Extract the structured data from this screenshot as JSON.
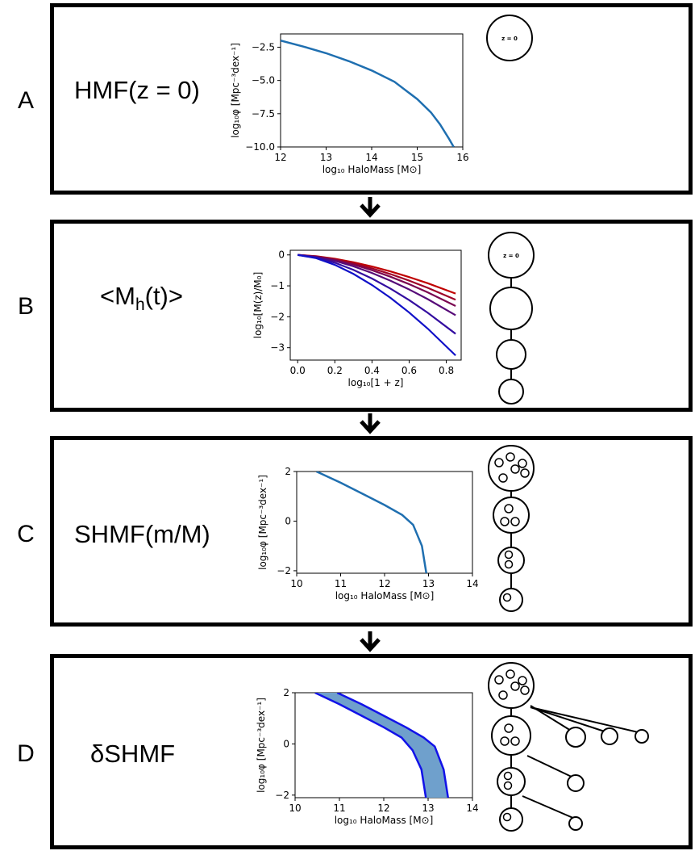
{
  "panels": [
    {
      "letter": "A",
      "title_main": "HMF(z = 0)"
    },
    {
      "letter": "B",
      "title_main": "<M",
      "title_sub": "h",
      "title_tail": "(t)>"
    },
    {
      "letter": "C",
      "title_main": "SHMF(m/M)"
    },
    {
      "letter": "D",
      "title_main": "δSHMF"
    }
  ],
  "stage_label": "z = 0",
  "colors": {
    "series_blue": "#1f6fb0",
    "band_fill": "#6fa0cc",
    "band_edge": "#1212e8",
    "evo_start": "#c00000",
    "evo_end": "#1010c8"
  },
  "chart_data": [
    {
      "type": "line",
      "panel": "A",
      "xlabel": "log₁₀ HaloMass [M⊙]",
      "ylabel": "log₁₀φ [Mpc⁻³dex⁻¹]",
      "xlim": [
        12,
        16
      ],
      "ylim": [
        -10,
        -1.5
      ],
      "xticks": [
        12,
        13,
        14,
        15,
        16
      ],
      "yticks": [
        -10.0,
        -7.5,
        -5.0,
        -2.5
      ],
      "ytick_labels": [
        "−10.0",
        "−7.5",
        "−5.0",
        "−2.5"
      ],
      "x": [
        12.0,
        12.5,
        13.0,
        13.5,
        14.0,
        14.5,
        15.0,
        15.3,
        15.5,
        15.7,
        15.8
      ],
      "y": [
        -2.0,
        -2.45,
        -2.95,
        -3.55,
        -4.25,
        -5.1,
        -6.4,
        -7.4,
        -8.3,
        -9.4,
        -10.0
      ]
    },
    {
      "type": "line",
      "panel": "B",
      "xlabel": "log₁₀[1 + z]",
      "ylabel": "log₁₀[M(z)/M₀]",
      "xlim": [
        -0.04,
        0.88
      ],
      "ylim": [
        -3.4,
        0.15
      ],
      "xticks": [
        0.0,
        0.2,
        0.4,
        0.6,
        0.8
      ],
      "xtick_labels": [
        "0.0",
        "0.2",
        "0.4",
        "0.6",
        "0.8"
      ],
      "yticks": [
        -3,
        -2,
        -1,
        0
      ],
      "ytick_labels": [
        "−3",
        "−2",
        "−1",
        "0"
      ],
      "x": [
        0.0,
        0.1,
        0.2,
        0.3,
        0.4,
        0.5,
        0.6,
        0.7,
        0.85
      ],
      "series": [
        {
          "endpoint": -1.25
        },
        {
          "endpoint": -1.45
        },
        {
          "endpoint": -1.65
        },
        {
          "endpoint": -1.95
        },
        {
          "endpoint": -2.55
        },
        {
          "endpoint": -3.25
        }
      ]
    },
    {
      "type": "line",
      "panel": "C",
      "xlabel": "log₁₀ HaloMass [M⊙]",
      "ylabel": "log₁₀φ [Mpc⁻³dex⁻¹]",
      "xlim": [
        10,
        14
      ],
      "ylim": [
        -2.1,
        2
      ],
      "xticks": [
        10,
        11,
        12,
        13,
        14
      ],
      "yticks": [
        -2,
        0,
        2
      ],
      "ytick_labels": [
        "−2",
        "0",
        "2"
      ],
      "x": [
        10.45,
        11.0,
        11.5,
        12.0,
        12.4,
        12.65,
        12.85,
        12.95
      ],
      "y": [
        2.0,
        1.55,
        1.1,
        0.65,
        0.25,
        -0.15,
        -1.0,
        -2.1
      ]
    },
    {
      "type": "area",
      "panel": "D",
      "xlabel": "log₁₀ HaloMass [M⊙]",
      "ylabel": "log₁₀φ [Mpc⁻³dex⁻¹]",
      "xlim": [
        10,
        14
      ],
      "ylim": [
        -2.1,
        2
      ],
      "xticks": [
        10,
        11,
        12,
        13,
        14
      ],
      "yticks": [
        -2,
        0,
        2
      ],
      "ytick_labels": [
        "−2",
        "0",
        "2"
      ],
      "lower": {
        "x": [
          10.45,
          11.0,
          11.5,
          12.0,
          12.4,
          12.65,
          12.85,
          12.95
        ],
        "y": [
          2.0,
          1.55,
          1.1,
          0.65,
          0.25,
          -0.25,
          -1.0,
          -2.1
        ]
      },
      "upper": {
        "x": [
          10.95,
          11.5,
          12.0,
          12.5,
          12.9,
          13.15,
          13.35,
          13.45
        ],
        "y": [
          2.0,
          1.55,
          1.1,
          0.65,
          0.25,
          -0.1,
          -1.0,
          -2.1
        ]
      }
    }
  ]
}
